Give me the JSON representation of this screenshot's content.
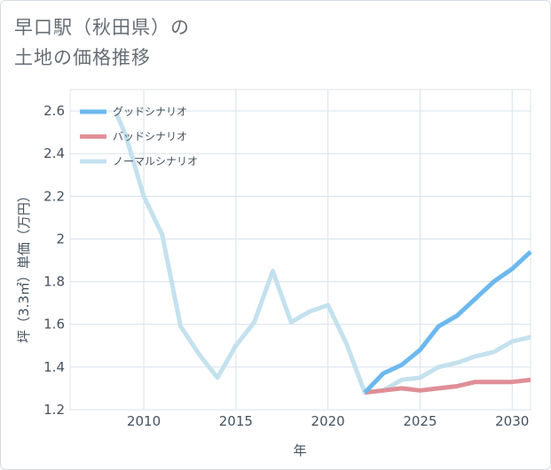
{
  "title": {
    "line1": "早口駅（秋田県）の",
    "line2": "土地の価格推移"
  },
  "chart_data": {
    "type": "line",
    "xlabel": "年",
    "ylabel": "坪（3.3㎡）単価（万円）",
    "xlim": [
      2006,
      2031
    ],
    "ylim": [
      1.2,
      2.7
    ],
    "x_ticks": [
      2010,
      2015,
      2020,
      2025,
      2030
    ],
    "y_ticks": [
      1.2,
      1.4,
      1.6,
      1.8,
      2,
      2.2,
      2.4,
      2.6
    ],
    "grid": true,
    "legend_position": "top-left",
    "series": [
      {
        "name": "グッドシナリオ",
        "color": "#6cb8ee",
        "points": [
          [
            2022,
            1.28
          ],
          [
            2023,
            1.37
          ],
          [
            2024,
            1.41
          ],
          [
            2025,
            1.48
          ],
          [
            2026,
            1.59
          ],
          [
            2027,
            1.64
          ],
          [
            2028,
            1.72
          ],
          [
            2029,
            1.8
          ],
          [
            2030,
            1.86
          ],
          [
            2031,
            1.94
          ]
        ]
      },
      {
        "name": "バッドシナリオ",
        "color": "#e08e96",
        "points": [
          [
            2022,
            1.28
          ],
          [
            2023,
            1.29
          ],
          [
            2024,
            1.3
          ],
          [
            2025,
            1.29
          ],
          [
            2026,
            1.3
          ],
          [
            2027,
            1.31
          ],
          [
            2028,
            1.33
          ],
          [
            2029,
            1.33
          ],
          [
            2030,
            1.33
          ],
          [
            2031,
            1.34
          ]
        ]
      },
      {
        "name": "ノーマルシナリオ",
        "color": "#c4e1ee",
        "points": [
          [
            2008.5,
            2.59
          ],
          [
            2009,
            2.49
          ],
          [
            2010,
            2.2
          ],
          [
            2011,
            2.02
          ],
          [
            2012,
            1.59
          ],
          [
            2013,
            1.46
          ],
          [
            2014,
            1.35
          ],
          [
            2015,
            1.5
          ],
          [
            2016,
            1.61
          ],
          [
            2017,
            1.85
          ],
          [
            2018,
            1.61
          ],
          [
            2019,
            1.66
          ],
          [
            2020,
            1.69
          ],
          [
            2021,
            1.51
          ],
          [
            2022,
            1.28
          ],
          [
            2023,
            1.29
          ],
          [
            2024,
            1.34
          ],
          [
            2025,
            1.35
          ],
          [
            2026,
            1.4
          ],
          [
            2027,
            1.42
          ],
          [
            2028,
            1.45
          ],
          [
            2029,
            1.47
          ],
          [
            2030,
            1.52
          ],
          [
            2031,
            1.54
          ]
        ]
      }
    ]
  }
}
